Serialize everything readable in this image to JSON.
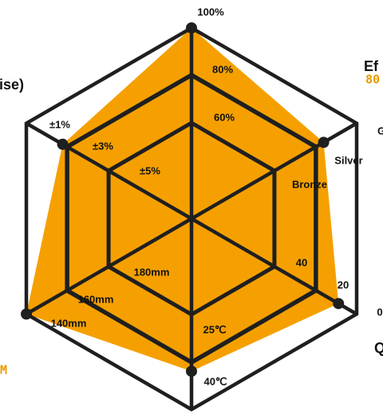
{
  "chart_data": {
    "type": "radar",
    "colors": {
      "fill": "#F5A000",
      "grid": "#1f1f1f",
      "accent": "#E89A00"
    },
    "axes": [
      {
        "key": "top",
        "ticks": [
          "100%",
          "80%",
          "60%"
        ],
        "value": 100
      },
      {
        "key": "upper-right",
        "label": "Ef",
        "value_text": "80",
        "ticks": [
          "G",
          "Silver",
          "Bronze"
        ],
        "value": 80
      },
      {
        "key": "lower-right",
        "label": "Q",
        "ticks": [
          "0",
          "20",
          "40"
        ],
        "value": 89
      },
      {
        "key": "bottom",
        "ticks": [
          "40℃",
          "25℃"
        ],
        "value": 80
      },
      {
        "key": "lower-left",
        "value_text": "M",
        "ticks": [
          "140mm",
          "160mm",
          "180mm"
        ],
        "value": 100
      },
      {
        "key": "upper-left",
        "label": "ise)",
        "ticks": [
          "±1%",
          "±3%",
          "±5%"
        ],
        "value": 78
      }
    ]
  }
}
